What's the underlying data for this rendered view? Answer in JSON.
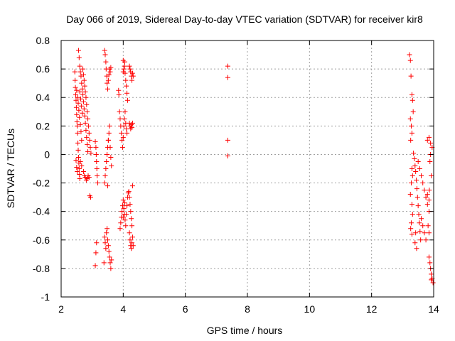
{
  "chart_data": {
    "type": "scatter",
    "title": "Day 066 of 2019, Sidereal Day-to-day VTEC variation (SDTVAR) for receiver kir8",
    "xlabel": "GPS time / hours",
    "ylabel": "SDTVAR / TECUs",
    "xlim": [
      2,
      14
    ],
    "ylim": [
      -1,
      0.8
    ],
    "x_ticks": [
      2,
      4,
      6,
      8,
      10,
      12,
      14
    ],
    "x_tick_labels": [
      "2",
      "4",
      "6",
      "8",
      "10",
      "12",
      "14"
    ],
    "y_ticks": [
      -1,
      -0.8,
      -0.6,
      -0.4,
      -0.2,
      0,
      0.2,
      0.4,
      0.6,
      0.8
    ],
    "y_tick_labels": [
      "-1",
      "-0.8",
      "-0.6",
      "-0.4",
      "-0.2",
      "0",
      "0.2",
      "0.4",
      "0.6",
      "0.8"
    ],
    "grid": true,
    "marker": "+",
    "color": "#ff0000",
    "points": [
      [
        2.44,
        0.58
      ],
      [
        2.45,
        0.52
      ],
      [
        2.46,
        0.47
      ],
      [
        2.47,
        0.42
      ],
      [
        2.48,
        0.38
      ],
      [
        2.49,
        0.33
      ],
      [
        2.5,
        0.28
      ],
      [
        2.51,
        0.23
      ],
      [
        2.52,
        0.2
      ],
      [
        2.53,
        0.15
      ],
      [
        2.54,
        0.08
      ],
      [
        2.55,
        0.03
      ],
      [
        2.56,
        -0.02
      ],
      [
        2.57,
        -0.06
      ],
      [
        2.58,
        -0.1
      ],
      [
        2.59,
        -0.14
      ],
      [
        2.6,
        -0.17
      ],
      [
        2.48,
        -0.04
      ],
      [
        2.5,
        -0.09
      ],
      [
        2.52,
        -0.12
      ],
      [
        2.56,
        0.73
      ],
      [
        2.58,
        0.68
      ],
      [
        2.6,
        0.62
      ],
      [
        2.62,
        0.58
      ],
      [
        2.64,
        0.55
      ],
      [
        2.66,
        0.5
      ],
      [
        2.68,
        0.46
      ],
      [
        2.7,
        0.42
      ],
      [
        2.72,
        0.37
      ],
      [
        2.74,
        0.32
      ],
      [
        2.76,
        0.27
      ],
      [
        2.78,
        0.22
      ],
      [
        2.8,
        0.17
      ],
      [
        2.82,
        0.12
      ],
      [
        2.84,
        0.07
      ],
      [
        2.86,
        0.02
      ],
      [
        2.5,
        0.45
      ],
      [
        2.53,
        0.4
      ],
      [
        2.55,
        0.36
      ],
      [
        2.57,
        0.31
      ],
      [
        2.59,
        0.26
      ],
      [
        2.62,
        0.21
      ],
      [
        2.64,
        0.16
      ],
      [
        2.66,
        0.1
      ],
      [
        2.6,
        0.44
      ],
      [
        2.63,
        0.39
      ],
      [
        2.65,
        0.34
      ],
      [
        2.68,
        0.29
      ],
      [
        2.7,
        0.6
      ],
      [
        2.72,
        0.56
      ],
      [
        2.74,
        0.52
      ],
      [
        2.76,
        0.48
      ],
      [
        2.78,
        0.44
      ],
      [
        2.8,
        0.4
      ],
      [
        2.82,
        0.35
      ],
      [
        2.84,
        0.3
      ],
      [
        2.86,
        0.25
      ],
      [
        2.88,
        0.2
      ],
      [
        2.9,
        0.15
      ],
      [
        2.92,
        0.1
      ],
      [
        2.94,
        0.05
      ],
      [
        2.96,
        0.01
      ],
      [
        2.72,
        -0.12
      ],
      [
        2.75,
        -0.15
      ],
      [
        2.78,
        -0.16
      ],
      [
        2.81,
        -0.18
      ],
      [
        2.84,
        -0.17
      ],
      [
        2.87,
        -0.15
      ],
      [
        2.9,
        -0.16
      ],
      [
        2.92,
        -0.29
      ],
      [
        2.95,
        -0.3
      ],
      [
        2.62,
        -0.05
      ],
      [
        2.66,
        -0.08
      ],
      [
        3.1,
        0.09
      ],
      [
        3.12,
        0.05
      ],
      [
        3.13,
        0.0
      ],
      [
        3.14,
        -0.05
      ],
      [
        3.15,
        -0.1
      ],
      [
        3.16,
        -0.15
      ],
      [
        3.18,
        -0.2
      ],
      [
        3.14,
        -0.62
      ],
      [
        3.12,
        -0.69
      ],
      [
        3.1,
        -0.78
      ],
      [
        3.4,
        0.73
      ],
      [
        3.42,
        0.7
      ],
      [
        3.44,
        0.65
      ],
      [
        3.45,
        0.6
      ],
      [
        3.47,
        0.55
      ],
      [
        3.48,
        0.5
      ],
      [
        3.5,
        0.46
      ],
      [
        3.52,
        0.52
      ],
      [
        3.54,
        0.56
      ],
      [
        3.56,
        0.6
      ],
      [
        3.58,
        0.58
      ],
      [
        3.6,
        0.61
      ],
      [
        3.4,
        -0.2
      ],
      [
        3.42,
        -0.15
      ],
      [
        3.44,
        -0.1
      ],
      [
        3.46,
        -0.05
      ],
      [
        3.48,
        0.0
      ],
      [
        3.5,
        0.05
      ],
      [
        3.52,
        0.1
      ],
      [
        3.54,
        0.15
      ],
      [
        3.56,
        0.2
      ],
      [
        3.58,
        0.05
      ],
      [
        3.6,
        -0.02
      ],
      [
        3.62,
        -0.08
      ],
      [
        3.5,
        -0.22
      ],
      [
        3.52,
        0.1
      ],
      [
        3.4,
        -0.58
      ],
      [
        3.42,
        -0.62
      ],
      [
        3.44,
        -0.66
      ],
      [
        3.46,
        -0.55
      ],
      [
        3.48,
        -0.52
      ],
      [
        3.5,
        -0.6
      ],
      [
        3.52,
        -0.64
      ],
      [
        3.54,
        -0.68
      ],
      [
        3.56,
        -0.72
      ],
      [
        3.58,
        -0.76
      ],
      [
        3.6,
        -0.8
      ],
      [
        3.62,
        -0.74
      ],
      [
        3.38,
        -0.76
      ],
      [
        3.85,
        0.45
      ],
      [
        3.86,
        0.42
      ],
      [
        3.88,
        0.3
      ],
      [
        3.9,
        0.25
      ],
      [
        3.92,
        0.2
      ],
      [
        3.94,
        0.15
      ],
      [
        3.96,
        0.1
      ],
      [
        3.98,
        0.05
      ],
      [
        4.0,
        0.12
      ],
      [
        4.02,
        0.2
      ],
      [
        4.04,
        0.25
      ],
      [
        4.06,
        0.3
      ],
      [
        4.08,
        0.22
      ],
      [
        4.1,
        0.18
      ],
      [
        4.12,
        0.15
      ],
      [
        4.0,
        0.58
      ],
      [
        4.02,
        0.6
      ],
      [
        4.04,
        0.62
      ],
      [
        4.06,
        0.57
      ],
      [
        4.08,
        0.52
      ],
      [
        4.1,
        0.48
      ],
      [
        4.12,
        0.43
      ],
      [
        4.14,
        0.38
      ],
      [
        4.0,
        0.66
      ],
      [
        4.05,
        0.65
      ],
      [
        3.9,
        -0.52
      ],
      [
        3.92,
        -0.48
      ],
      [
        3.94,
        -0.44
      ],
      [
        3.96,
        -0.4
      ],
      [
        3.98,
        -0.36
      ],
      [
        4.0,
        -0.32
      ],
      [
        4.02,
        -0.38
      ],
      [
        4.04,
        -0.42
      ],
      [
        4.06,
        -0.46
      ],
      [
        4.08,
        -0.5
      ],
      [
        4.1,
        -0.42
      ],
      [
        4.12,
        -0.36
      ],
      [
        4.14,
        -0.3
      ],
      [
        4.16,
        -0.27
      ],
      [
        4.0,
        -0.44
      ],
      [
        4.05,
        -0.34
      ],
      [
        4.2,
        0.62
      ],
      [
        4.22,
        0.6
      ],
      [
        4.24,
        0.58
      ],
      [
        4.26,
        0.55
      ],
      [
        4.28,
        0.52
      ],
      [
        4.3,
        0.57
      ],
      [
        4.32,
        0.55
      ],
      [
        4.2,
        0.22
      ],
      [
        4.22,
        0.2
      ],
      [
        4.24,
        0.18
      ],
      [
        4.26,
        0.21
      ],
      [
        4.28,
        0.19
      ],
      [
        4.3,
        0.22
      ],
      [
        4.18,
        -0.26
      ],
      [
        4.2,
        -0.3
      ],
      [
        4.22,
        -0.35
      ],
      [
        4.24,
        -0.4
      ],
      [
        4.26,
        -0.45
      ],
      [
        4.28,
        -0.5
      ],
      [
        4.2,
        -0.55
      ],
      [
        4.22,
        -0.6
      ],
      [
        4.24,
        -0.64
      ],
      [
        4.26,
        -0.66
      ],
      [
        4.28,
        -0.62
      ],
      [
        4.3,
        -0.58
      ],
      [
        4.32,
        -0.64
      ],
      [
        4.3,
        -0.22
      ],
      [
        7.37,
        0.62
      ],
      [
        7.37,
        0.54
      ],
      [
        7.37,
        0.1
      ],
      [
        7.37,
        -0.01
      ],
      [
        13.22,
        0.7
      ],
      [
        13.25,
        0.66
      ],
      [
        13.27,
        0.55
      ],
      [
        13.3,
        0.42
      ],
      [
        13.32,
        0.38
      ],
      [
        13.34,
        0.3
      ],
      [
        13.25,
        0.25
      ],
      [
        13.28,
        0.2
      ],
      [
        13.3,
        0.15
      ],
      [
        13.26,
        0.1
      ],
      [
        13.3,
        -0.1
      ],
      [
        13.32,
        -0.15
      ],
      [
        13.28,
        -0.2
      ],
      [
        13.25,
        -0.28
      ],
      [
        13.3,
        -0.35
      ],
      [
        13.32,
        -0.42
      ],
      [
        13.28,
        -0.48
      ],
      [
        13.26,
        -0.52
      ],
      [
        13.3,
        -0.56
      ],
      [
        13.35,
        0.01
      ],
      [
        13.38,
        -0.03
      ],
      [
        13.4,
        -0.08
      ],
      [
        13.42,
        -0.12
      ],
      [
        13.44,
        -0.18
      ],
      [
        13.46,
        -0.24
      ],
      [
        13.48,
        -0.3
      ],
      [
        13.5,
        -0.36
      ],
      [
        13.52,
        -0.42
      ],
      [
        13.54,
        -0.48
      ],
      [
        13.56,
        -0.54
      ],
      [
        13.58,
        -0.6
      ],
      [
        13.4,
        -0.62
      ],
      [
        13.45,
        -0.66
      ],
      [
        13.42,
        -0.55
      ],
      [
        13.5,
        -0.05
      ],
      [
        13.55,
        -0.1
      ],
      [
        13.6,
        -0.15
      ],
      [
        13.65,
        -0.2
      ],
      [
        13.7,
        -0.25
      ],
      [
        13.75,
        -0.3
      ],
      [
        13.8,
        -0.35
      ],
      [
        13.85,
        -0.4
      ],
      [
        13.6,
        -0.45
      ],
      [
        13.65,
        -0.5
      ],
      [
        13.7,
        -0.55
      ],
      [
        13.75,
        -0.6
      ],
      [
        13.8,
        -0.28
      ],
      [
        13.85,
        -0.32
      ],
      [
        13.8,
        0.1
      ],
      [
        13.85,
        0.12
      ],
      [
        13.9,
        0.08
      ],
      [
        13.95,
        0.05
      ],
      [
        13.9,
        0.0
      ],
      [
        13.88,
        -0.05
      ],
      [
        13.92,
        -0.15
      ],
      [
        13.86,
        -0.25
      ],
      [
        13.82,
        -0.5
      ],
      [
        13.85,
        -0.55
      ],
      [
        13.85,
        -0.72
      ],
      [
        13.88,
        -0.76
      ],
      [
        13.9,
        -0.8
      ],
      [
        13.92,
        -0.84
      ],
      [
        13.95,
        -0.87
      ],
      [
        13.98,
        -0.9
      ],
      [
        13.92,
        -0.88
      ]
    ]
  }
}
